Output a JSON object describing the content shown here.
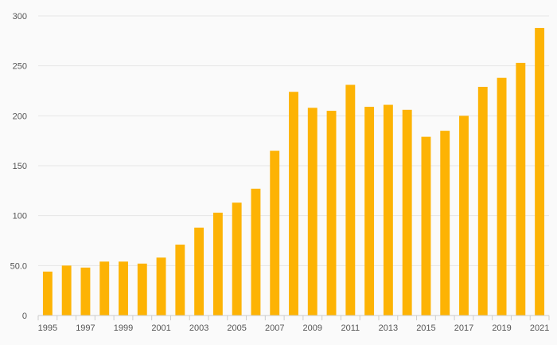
{
  "chart_data": {
    "type": "bar",
    "title": "",
    "xlabel": "",
    "ylabel": "",
    "categories": [
      "1995",
      "1996",
      "1997",
      "1998",
      "1999",
      "2000",
      "2001",
      "2002",
      "2003",
      "2004",
      "2005",
      "2006",
      "2007",
      "2008",
      "2009",
      "2010",
      "2011",
      "2012",
      "2013",
      "2014",
      "2015",
      "2016",
      "2017",
      "2018",
      "2019",
      "2020",
      "2021"
    ],
    "x_tick_labels": [
      "1995",
      "1997",
      "1999",
      "2001",
      "2003",
      "2005",
      "2007",
      "2009",
      "2011",
      "2013",
      "2015",
      "2017",
      "2019",
      "2021"
    ],
    "values": [
      44,
      50,
      48,
      54,
      54,
      52,
      58,
      71,
      88,
      103,
      113,
      127,
      165,
      224,
      208,
      205,
      231,
      209,
      211,
      206,
      179,
      185,
      200,
      229,
      238,
      253,
      288
    ],
    "y_tick_labels": [
      "0",
      "50.0",
      "100",
      "150",
      "200",
      "250",
      "300"
    ],
    "y_ticks": [
      0,
      50,
      100,
      150,
      200,
      250,
      300
    ],
    "ylim": [
      0,
      300
    ],
    "grid": true,
    "colors": {
      "bar": "#FDB304",
      "grid": "#e6e6e6",
      "axis": "#cccccc",
      "background": "#fafafa"
    }
  }
}
